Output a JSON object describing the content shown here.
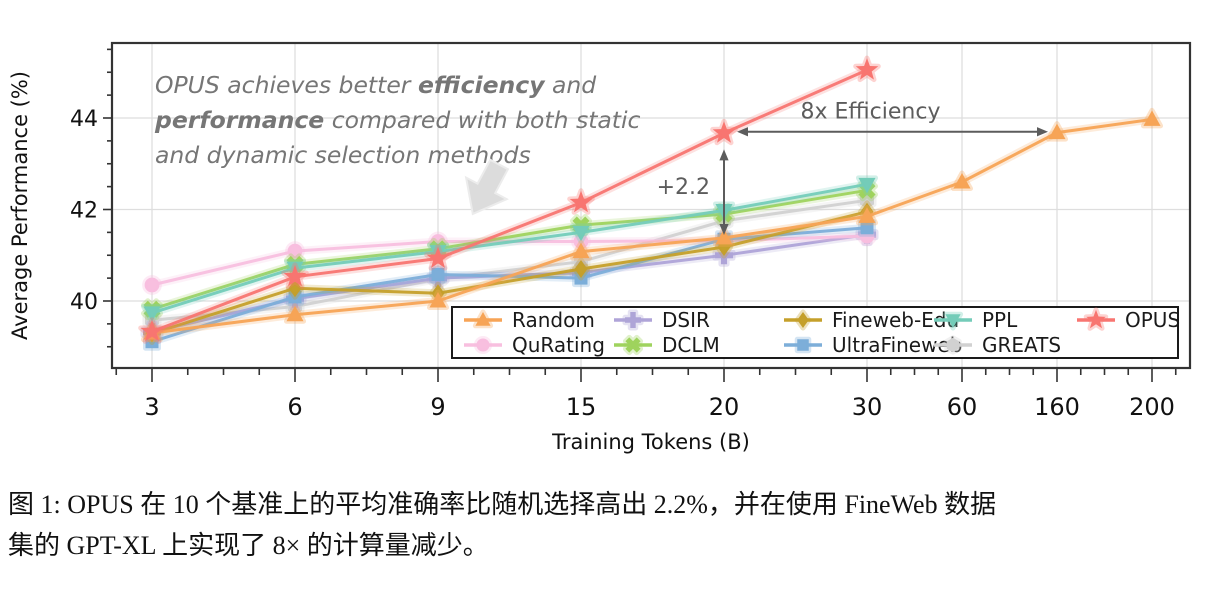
{
  "figure": {
    "note": {
      "color": "#767676",
      "lines": [
        [
          {
            "t": "OPUS achieves better ",
            "b": false
          },
          {
            "t": "efficiency",
            "b": true
          },
          {
            "t": " and",
            "b": false
          }
        ],
        [
          {
            "t": "performance",
            "b": true
          },
          {
            "t": " compared with both static",
            "b": false
          }
        ],
        [
          {
            "t": "and dynamic selection methods",
            "b": false
          }
        ]
      ]
    }
  },
  "chart_data": {
    "type": "line",
    "title": "",
    "xlabel": "Training Tokens (B)",
    "ylabel": "Average Performance (%)",
    "x_tick_labels": [
      "3",
      "6",
      "9",
      "15",
      "20",
      "30",
      "60",
      "160",
      "200"
    ],
    "y_ticks": [
      40,
      42,
      44
    ],
    "ylim": [
      38.5,
      45.65
    ],
    "grid": true,
    "legend_position": "inside-bottom",
    "legend_columns": [
      [
        "Random",
        "QuRating"
      ],
      [
        "DSIR",
        "DCLM"
      ],
      [
        "Fineweb-Edu",
        "UltraFineweb"
      ],
      [
        "PPL",
        "GREATS"
      ],
      [
        "OPUS"
      ]
    ],
    "series": [
      {
        "name": "Random",
        "color": "#F7A456",
        "marker": "triangle-up",
        "values": [
          39.3,
          39.7,
          40.0,
          41.08,
          41.38,
          41.85,
          42.6,
          43.68,
          43.97
        ]
      },
      {
        "name": "QuRating",
        "color": "#F8BFDF",
        "marker": "circle",
        "values": [
          40.35,
          41.09,
          41.3,
          41.3,
          41.32,
          41.42,
          null,
          null,
          null
        ]
      },
      {
        "name": "DSIR",
        "color": "#AFA4D8",
        "marker": "plus",
        "values": [
          39.32,
          40.05,
          40.5,
          40.62,
          41.0,
          41.45,
          null,
          null,
          null
        ]
      },
      {
        "name": "DCLM",
        "color": "#9FD35E",
        "marker": "x",
        "values": [
          39.82,
          40.8,
          41.14,
          41.66,
          41.9,
          42.42,
          null,
          null,
          null
        ]
      },
      {
        "name": "Fineweb-Edu",
        "color": "#C5A02B",
        "marker": "diamond",
        "values": [
          39.29,
          40.28,
          40.17,
          40.7,
          41.18,
          41.95,
          null,
          null,
          null
        ]
      },
      {
        "name": "UltraFineweb",
        "color": "#7DAED9",
        "marker": "square",
        "values": [
          39.11,
          40.09,
          40.58,
          40.5,
          41.35,
          41.6,
          null,
          null,
          null
        ]
      },
      {
        "name": "PPL",
        "color": "#74CCB9",
        "marker": "triangle-down",
        "values": [
          39.74,
          40.72,
          41.08,
          41.5,
          41.98,
          42.55,
          null,
          null,
          null
        ]
      },
      {
        "name": "GREATS",
        "color": "#D1D1D1",
        "marker": "hexagon",
        "values": [
          39.58,
          39.88,
          40.48,
          40.86,
          41.75,
          42.2,
          null,
          null,
          null
        ]
      },
      {
        "name": "OPUS",
        "color": "#F87571",
        "marker": "star",
        "values": [
          39.33,
          40.53,
          40.93,
          42.15,
          43.67,
          45.05,
          null,
          null,
          null
        ]
      }
    ],
    "annotations": [
      {
        "type": "h",
        "label": "8x Efficiency",
        "x1": "20",
        "x2": "160",
        "y": 43.7
      },
      {
        "type": "v",
        "label": "+2.2",
        "x": "20",
        "y1": 43.62,
        "y2": 41.4
      }
    ],
    "annotation_color": "#5c5c5c"
  },
  "caption": {
    "lines": [
      "图 1: OPUS 在 10 个基准上的平均准确率比随机选择高出 2.2%，并在使用 FineWeb 数据",
      "集的 GPT-XL 上实现了 8× 的计算量减少。"
    ]
  }
}
